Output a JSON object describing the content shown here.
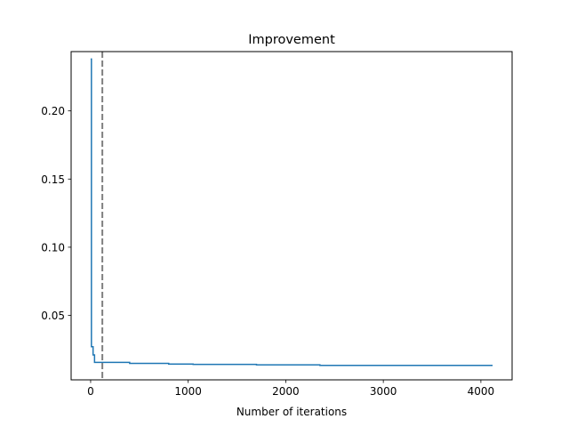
{
  "chart_data": {
    "type": "line",
    "title": "Improvement",
    "xlabel": "Number of iterations",
    "ylabel": "",
    "xlim": [
      -200,
      4320
    ],
    "ylim": [
      0.0027,
      0.2435
    ],
    "xticks": [
      0,
      1000,
      2000,
      3000,
      4000
    ],
    "yticks": [
      0.05,
      0.1,
      0.15,
      0.2
    ],
    "xtick_labels": [
      "0",
      "1000",
      "2000",
      "3000",
      "4000"
    ],
    "ytick_labels": [
      "0.05",
      "0.10",
      "0.15",
      "0.20"
    ],
    "grid": false,
    "series": [
      {
        "color": "#1f77b4",
        "step": true,
        "x": [
          0,
          8,
          25,
          40,
          400,
          800,
          1050,
          1700,
          2350,
          4120
        ],
        "y": [
          0.238,
          0.027,
          0.021,
          0.0155,
          0.0148,
          0.0143,
          0.014,
          0.0137,
          0.0133,
          0.0133
        ]
      }
    ],
    "vline": {
      "x": 120,
      "color": "#808080",
      "style": "dashed"
    }
  }
}
